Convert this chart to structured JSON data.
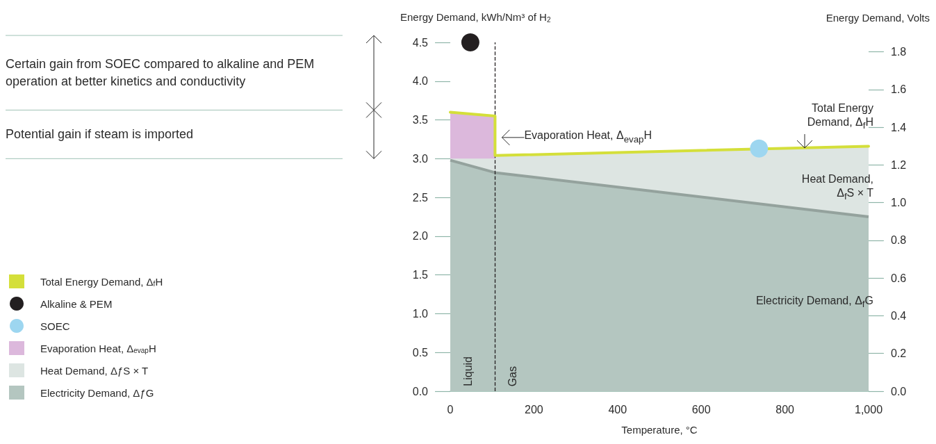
{
  "chart_data": {
    "type": "area",
    "xlabel": "Temperature, °C",
    "ylabel": "Energy Demand, kWh/Nm³ of H$_{2}$",
    "y2label": "Energy Demand, Volts",
    "xlim": [
      0,
      1000
    ],
    "xticks": [
      0,
      200,
      400,
      600,
      800,
      {
        "value": 1000,
        "label": "1,000"
      }
    ],
    "ylim": [
      0,
      4.5
    ],
    "yticks": [
      {
        "value": 0,
        "label": "0.0"
      },
      0.5,
      {
        "value": 1,
        "label": "1.0"
      },
      1.5,
      {
        "value": 2,
        "label": "2.0"
      },
      2.5,
      {
        "value": 3,
        "label": "3.0"
      },
      3.5,
      {
        "value": 4,
        "label": "4.0"
      },
      4.5
    ],
    "y2lim": [
      0,
      1.85
    ],
    "y2ticks": [
      {
        "value": 0,
        "label": "0.0"
      },
      0.2,
      0.4,
      0.6,
      0.8,
      {
        "value": 1,
        "label": "1.0"
      },
      1.2,
      1.4,
      1.6,
      1.8
    ],
    "grid": false,
    "legend": "left",
    "series": [
      {
        "name": "Total Energy Demand, Δ$_{f}$H",
        "type": "line",
        "color": "#d4df3a",
        "x": [
          0,
          107,
          107,
          1000
        ],
        "values": [
          3.6,
          3.55,
          3.04,
          3.16
        ]
      },
      {
        "name": "Alkaline & PEM",
        "type": "scatter",
        "color": "#231f20",
        "x": [
          48
        ],
        "values": [
          4.5
        ]
      },
      {
        "name": "SOEC",
        "type": "scatter",
        "color": "#9dd6f0",
        "x": [
          738
        ],
        "values": [
          3.13
        ]
      },
      {
        "name": "Evaporation Heat, Δ$_{evap}$H",
        "color": "#dcb8dc",
        "x": [
          0,
          107
        ],
        "values": [
          3.6,
          3.55
        ]
      },
      {
        "name": "Heat Demand, ΔƒS × T",
        "color": "#dde5e2",
        "x": [
          0,
          107,
          107,
          1000
        ],
        "values": [
          3.0,
          3.0,
          3.04,
          3.16
        ]
      },
      {
        "name": "Electricity Demand, ΔƒG",
        "color": "#b4c6c0",
        "line_style": "solid",
        "x": [
          0,
          107,
          1000
        ],
        "values": [
          2.98,
          2.82,
          2.25
        ]
      }
    ],
    "ref_lines": [
      {
        "axis": "x",
        "value": 107,
        "color": "#231f20",
        "line_style": "dashed"
      }
    ],
    "annotations": [
      "Certain gain from SOEC compared to alkaline and PEM operation at better kinetics and conductivity",
      "Potential gain if steam is imported",
      "Evaporation Heat, Δ$_{evap}$H",
      "Total Energy Demand, Δ$_{f}$H",
      "Heat Demand, Δ$_{f}$S × T",
      "Electricity Demand, Δ$_{f}$G",
      "Liquid",
      "Gas"
    ]
  }
}
